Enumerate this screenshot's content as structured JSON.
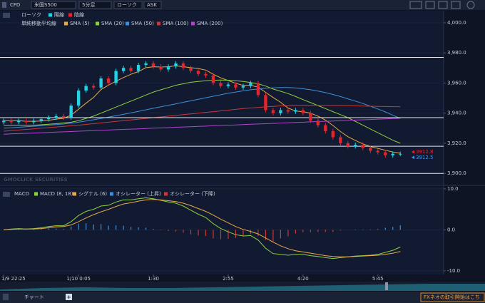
{
  "toolbar": {
    "market": "CFD",
    "symbol": "米国S500",
    "interval": "5分足",
    "chart_type": "ローソク",
    "side": "ASK"
  },
  "watermark": "GMOCLICK SECURITIES",
  "tabs": {
    "chart": "チャート",
    "add": "+",
    "banner": "FXネオの取引開始はこち"
  },
  "chart_data": [
    {
      "type": "candlestick",
      "legend_title": "ローソク",
      "up_name": "陽線",
      "down_name": "陰線",
      "up_color": "#22d3e6",
      "down_color": "#e3262d",
      "ma_title": "単純移動平均線",
      "xlim": [
        -0.5,
        58.6
      ],
      "ylim": [
        3893,
        4008
      ],
      "grid": true,
      "yticks": [
        {
          "value": 4000,
          "label": "4,000.0"
        },
        {
          "value": 3980,
          "label": "3,980.0"
        },
        {
          "value": 3960,
          "label": "3,960.0"
        },
        {
          "value": 3940,
          "label": "3,940.0"
        },
        {
          "value": 3920,
          "label": "3,920.0"
        },
        {
          "value": 3900,
          "label": "3,900.0"
        }
      ],
      "hlines": [
        3977,
        3937,
        3918,
        3900
      ],
      "price_markers": [
        {
          "value": 3912.8,
          "color": "#e3262d"
        },
        {
          "value": 3912.5,
          "color": "#4a90e8"
        }
      ],
      "open": [
        3934,
        3935,
        3934,
        3935,
        3934,
        3935,
        3936,
        3937,
        3938,
        3937,
        3945,
        3955,
        3958,
        3957,
        3963,
        3960,
        3968,
        3970,
        3968,
        3972,
        3973,
        3971,
        3969,
        3971,
        3973,
        3970,
        3968,
        3966,
        3965,
        3960,
        3958,
        3959,
        3957,
        3958,
        3960,
        3952,
        3942,
        3940,
        3942,
        3941,
        3942,
        3940,
        3935,
        3932,
        3928,
        3924,
        3920,
        3918,
        3919,
        3917,
        3915,
        3914,
        3912,
        3913
      ],
      "high": [
        3936.5,
        3936.5,
        3936.5,
        3936.5,
        3936.5,
        3937.5,
        3938.5,
        3939.5,
        3939.5,
        3946.5,
        3956.5,
        3959.5,
        3959.5,
        3964.5,
        3964.5,
        3969.5,
        3971.5,
        3971.5,
        3973.5,
        3974.5,
        3974.5,
        3972.5,
        3972.5,
        3974.5,
        3974.5,
        3971.5,
        3969.5,
        3967.5,
        3966.5,
        3961.5,
        3960.5,
        3960.5,
        3959.5,
        3961.5,
        3961.5,
        3953.5,
        3943.5,
        3943.5,
        3943.5,
        3943.5,
        3943.5,
        3941.5,
        3936.5,
        3933.5,
        3929.5,
        3925.5,
        3921.5,
        3920.5,
        3920.5,
        3918.5,
        3916.5,
        3915.5,
        3914.5,
        3914.5
      ],
      "low": [
        3932.5,
        3932.5,
        3932.5,
        3932.5,
        3932.5,
        3933.5,
        3934.5,
        3935.5,
        3935.5,
        3935.5,
        3943.5,
        3953.5,
        3955.5,
        3955.5,
        3958.5,
        3958.5,
        3966.5,
        3966.5,
        3966.5,
        3970.5,
        3969.5,
        3967.5,
        3967.5,
        3969.5,
        3968.5,
        3966.5,
        3964.5,
        3963.5,
        3958.5,
        3956.5,
        3956.5,
        3955.5,
        3955.5,
        3956.5,
        3950.5,
        3940.5,
        3938.5,
        3938.5,
        3939.5,
        3939.5,
        3938.5,
        3933.5,
        3930.5,
        3926.5,
        3922.5,
        3918.5,
        3916.5,
        3916.5,
        3915.5,
        3913.5,
        3912.5,
        3910.5,
        3910.5,
        3911.5
      ],
      "close": [
        3935,
        3934,
        3935,
        3934,
        3935,
        3936,
        3937,
        3938,
        3937,
        3945,
        3955,
        3958,
        3957,
        3963,
        3960,
        3968,
        3970,
        3968,
        3972,
        3973,
        3971,
        3969,
        3971,
        3973,
        3970,
        3968,
        3966,
        3965,
        3960,
        3958,
        3959,
        3957,
        3958,
        3960,
        3952,
        3942,
        3940,
        3942,
        3941,
        3942,
        3940,
        3935,
        3932,
        3928,
        3924,
        3920,
        3918,
        3919,
        3917,
        3915,
        3914,
        3912,
        3913,
        3913
      ],
      "series": [
        {
          "name": "SMA (5)",
          "color": "#e8a94a",
          "values": [
            3935,
            3935,
            3935,
            3934.6,
            3934.6,
            3934.8,
            3935.2,
            3936,
            3936.6,
            3938.6,
            3942.6,
            3946.6,
            3950.4,
            3955.6,
            3958.6,
            3961.2,
            3963.6,
            3965.8,
            3967.6,
            3970.2,
            3970.8,
            3970.6,
            3970.8,
            3971.4,
            3970.8,
            3970.2,
            3969.6,
            3968.6,
            3965.8,
            3963.4,
            3961.6,
            3959.8,
            3958.4,
            3958.4,
            3957.2,
            3953.8,
            3950.4,
            3947.2,
            3943.4,
            3941.4,
            3941,
            3940,
            3938,
            3935.4,
            3931.8,
            3927.8,
            3924.4,
            3921.8,
            3919.6,
            3917.8,
            3916.6,
            3915.4,
            3914.2,
            3913.4
          ]
        },
        {
          "name": "SMA (20)",
          "color": "#8fcf3c",
          "values": [
            3932,
            3932,
            3932,
            3932,
            3932,
            3932.3,
            3932.6,
            3933,
            3933.5,
            3934,
            3935,
            3936.5,
            3938,
            3940,
            3942,
            3944,
            3946,
            3948,
            3950,
            3952,
            3954,
            3955.5,
            3957,
            3958.5,
            3959.5,
            3960.5,
            3961,
            3961.5,
            3961.8,
            3962,
            3961.8,
            3961.5,
            3961,
            3960.3,
            3959.5,
            3958,
            3956,
            3954.5,
            3953,
            3951,
            3949,
            3947,
            3945,
            3943,
            3941,
            3939,
            3937,
            3934.5,
            3932,
            3929.5,
            3927,
            3924.5,
            3922,
            3920
          ]
        },
        {
          "name": "SMA (50)",
          "color": "#3d8fd8",
          "values": [
            3930,
            3930.3,
            3930.6,
            3931,
            3931.3,
            3931.6,
            3932,
            3932.4,
            3932.8,
            3933.3,
            3934,
            3934.8,
            3935.6,
            3936.5,
            3937.4,
            3938.3,
            3939.2,
            3940.2,
            3941.2,
            3942.2,
            3943.2,
            3944.2,
            3945.2,
            3946.2,
            3947.2,
            3948.2,
            3949.2,
            3950.2,
            3951.2,
            3952.2,
            3953.2,
            3954,
            3954.8,
            3955.5,
            3956,
            3956.5,
            3956.8,
            3957,
            3957,
            3956.7,
            3956.2,
            3955.5,
            3954.6,
            3953.6,
            3952.4,
            3951,
            3949.5,
            3948,
            3946.4,
            3944.6,
            3942.8,
            3940.8,
            3938.6,
            3936.5
          ]
        },
        {
          "name": "SMA (100)",
          "color": "#c8393b",
          "values": [
            3928,
            3928.4,
            3928.8,
            3929.2,
            3929.6,
            3930,
            3930.4,
            3930.8,
            3931.2,
            3931.6,
            3932,
            3932.5,
            3933,
            3933.5,
            3934,
            3934.5,
            3935,
            3935.5,
            3936,
            3936.5,
            3937,
            3937.5,
            3938,
            3938.5,
            3939,
            3939.5,
            3940,
            3940.5,
            3941,
            3941.5,
            3942,
            3942.5,
            3943,
            3943.4,
            3943.8,
            3944.2,
            3944.5,
            3944.8,
            3945,
            3945.1,
            3945.2,
            3945.2,
            3945.2,
            3945.1,
            3945,
            3945,
            3944.9,
            3944.8,
            3944.7,
            3944.6,
            3944.5,
            3944.4,
            3944.3,
            3944.2
          ]
        },
        {
          "name": "SMA (200)",
          "color": "#b044c8",
          "values": [
            3926,
            3926.2,
            3926.4,
            3926.6,
            3926.8,
            3927,
            3927.2,
            3927.4,
            3927.6,
            3927.8,
            3928,
            3928.2,
            3928.4,
            3928.6,
            3928.8,
            3929,
            3929.2,
            3929.4,
            3929.6,
            3929.8,
            3930,
            3930.2,
            3930.4,
            3930.6,
            3930.8,
            3931,
            3931.2,
            3931.4,
            3931.6,
            3931.8,
            3932,
            3932.2,
            3932.4,
            3932.6,
            3932.8,
            3933,
            3933.2,
            3933.4,
            3933.6,
            3933.8,
            3934,
            3934.2,
            3934.4,
            3934.6,
            3934.8,
            3935,
            3935.2,
            3935.4,
            3935.6,
            3935.8,
            3936,
            3936.2,
            3936.4,
            3936.6
          ]
        }
      ]
    },
    {
      "type": "macd",
      "legend_title": "MACD",
      "xlim": [
        -0.5,
        58.6
      ],
      "ylim": [
        -10.9,
        10.5
      ],
      "yticks": [
        {
          "value": 10,
          "label": "10.0"
        },
        {
          "value": 0,
          "label": "0.0"
        },
        {
          "value": -10,
          "label": "-10.0"
        }
      ],
      "xticks": [
        {
          "value": 0,
          "label": "1/9 22:25"
        },
        {
          "value": 10,
          "label": "1/10 0:05"
        },
        {
          "value": 20,
          "label": "1:30"
        },
        {
          "value": 30,
          "label": "2:55"
        },
        {
          "value": 40,
          "label": "4:20"
        },
        {
          "value": 50,
          "label": "5:45"
        }
      ],
      "series": [
        {
          "name": "MACD (8, 18)",
          "color": "#8fcf3c",
          "values": [
            0,
            0.2,
            0.3,
            0.2,
            0.3,
            0.5,
            0.8,
            1.0,
            1.0,
            2,
            3.5,
            4.5,
            5,
            5.8,
            6,
            6.8,
            7.3,
            7.3,
            7.6,
            7.8,
            7.6,
            7.2,
            6.8,
            6.5,
            5.8,
            4.8,
            3.8,
            3,
            1.5,
            0.3,
            -0.5,
            -1.2,
            -1.5,
            -1.4,
            -2.5,
            -4.5,
            -5.8,
            -6,
            -6.2,
            -6,
            -6,
            -6.3,
            -6.5,
            -6.8,
            -7,
            -6.8,
            -6.6,
            -6.4,
            -6.3,
            -6.2,
            -6,
            -5.5,
            -5,
            -4.2
          ]
        },
        {
          "name": "シグナル (6)",
          "color": "#e8a94a",
          "values": [
            0,
            0.1,
            0.2,
            0.2,
            0.2,
            0.3,
            0.5,
            0.7,
            0.8,
            1.2,
            2,
            2.9,
            3.7,
            4.4,
            5,
            5.7,
            6.3,
            6.6,
            7,
            7.3,
            7.4,
            7.3,
            7.1,
            6.9,
            6.5,
            5.9,
            5.2,
            4.5,
            3.6,
            2.6,
            1.7,
            0.8,
            0.1,
            -0.4,
            -1,
            -2,
            -3,
            -3.9,
            -4.6,
            -5.1,
            -5.4,
            -5.7,
            -6,
            -6.3,
            -6.5,
            -6.6,
            -6.6,
            -6.5,
            -6.4,
            -6.3,
            -6.2,
            -6,
            -5.7,
            -5.3
          ]
        }
      ],
      "histogram": {
        "up_name": "オシレーター (上昇)",
        "down_name": "オシレーター (下降)",
        "up_color": "#3d8fd8",
        "down_color": "#c8393b",
        "values": [
          0,
          0.1,
          0.1,
          0,
          0.1,
          0.2,
          0.3,
          0.3,
          0.2,
          0.8,
          1.5,
          1.6,
          1.3,
          1.4,
          1,
          1.1,
          1,
          0.7,
          0.6,
          0.5,
          0.2,
          -0.1,
          -0.3,
          -0.4,
          -0.7,
          -1.1,
          -1.4,
          -1.5,
          -2.1,
          -2.3,
          -2.2,
          -2,
          -1.6,
          -1,
          -1.5,
          -2.5,
          -2.8,
          -2.1,
          -1.6,
          -0.9,
          -0.6,
          -0.6,
          -0.5,
          -0.5,
          -0.5,
          -0.2,
          0,
          0.1,
          0.1,
          0.1,
          0.2,
          0.5,
          0.7,
          1.1
        ]
      }
    }
  ]
}
